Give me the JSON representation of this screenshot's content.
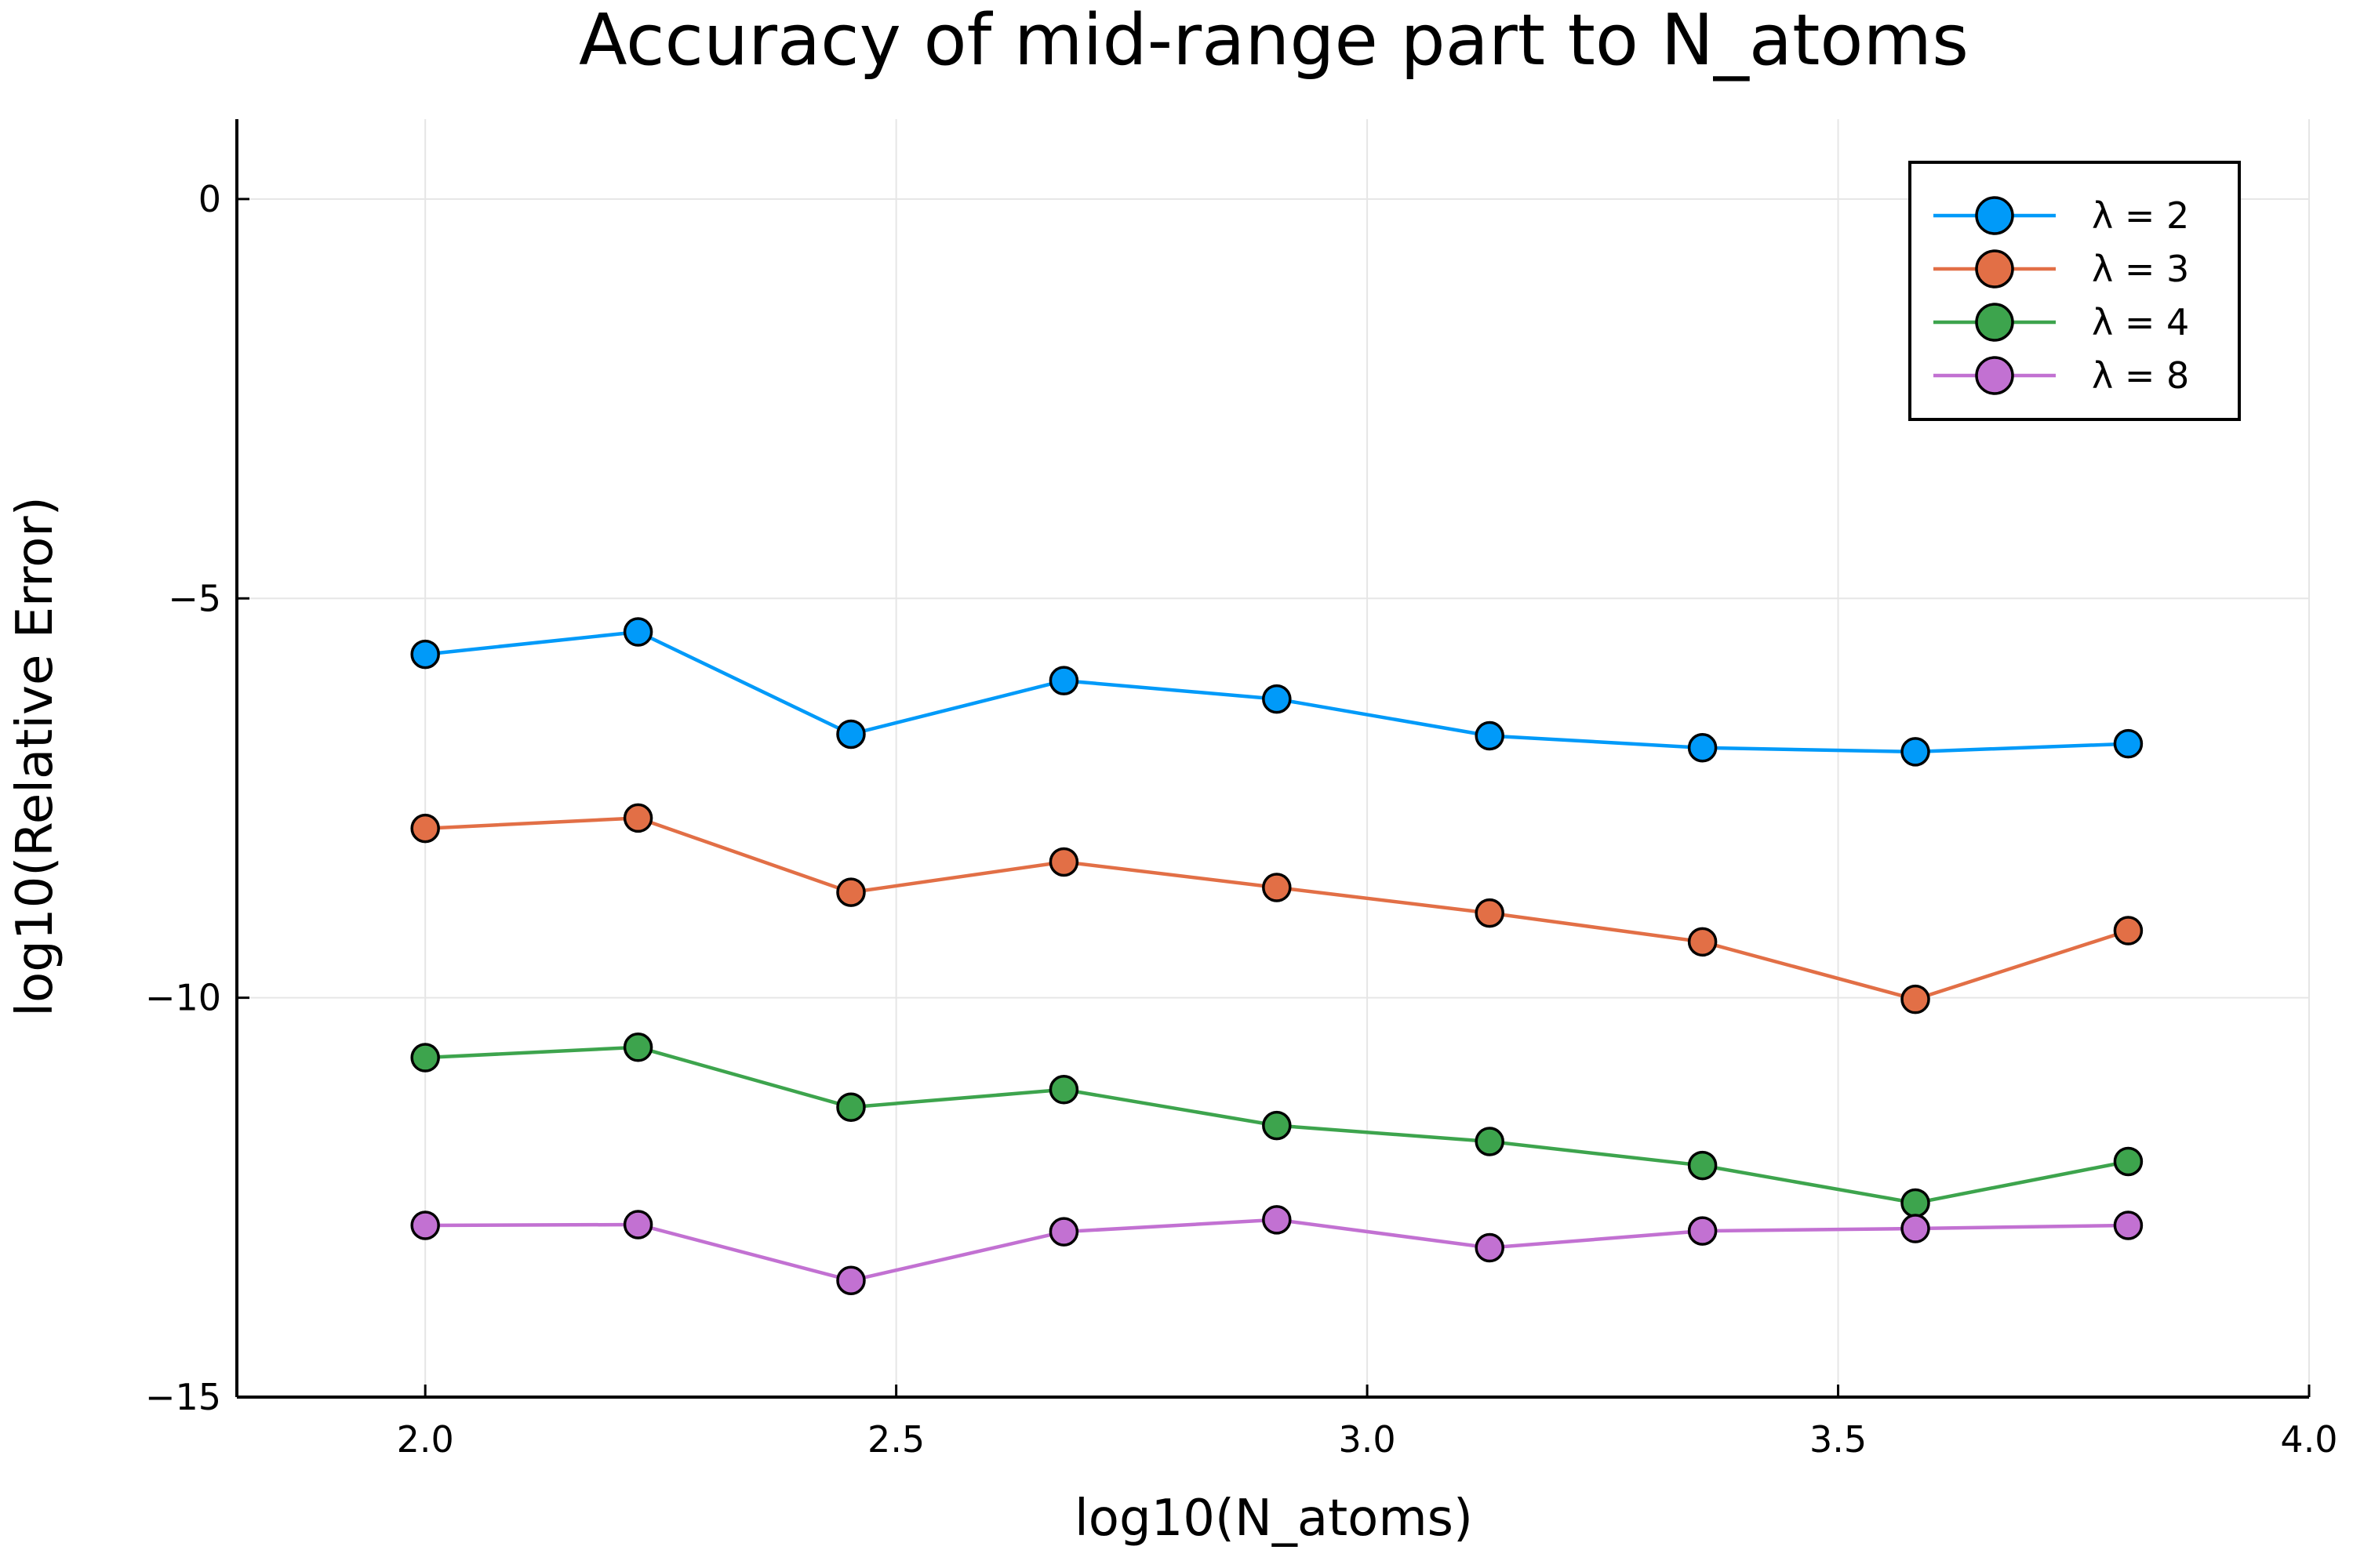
{
  "chart_data": {
    "type": "line",
    "title": "Accuracy of mid-range part to N_atoms",
    "xlabel": "log10(N_atoms)",
    "ylabel": "log10(Relative Error)",
    "xlim": [
      1.8,
      4.0
    ],
    "ylim": [
      -15,
      1
    ],
    "xticks": [
      2.0,
      2.5,
      3.0,
      3.5,
      4.0
    ],
    "xtick_labels": [
      "2.0",
      "2.5",
      "3.0",
      "3.5",
      "4.0"
    ],
    "yticks": [
      0,
      -5,
      -10,
      -15
    ],
    "ytick_labels": [
      "0",
      "−5",
      "−10",
      "−15"
    ],
    "grid": true,
    "legend_position": "top-right",
    "x": [
      2.0,
      2.226,
      2.452,
      2.678,
      2.904,
      3.13,
      3.356,
      3.582,
      3.808
    ],
    "series": [
      {
        "name": "λ = 2",
        "color": "#009af9",
        "values": [
          -5.7,
          -5.42,
          -6.7,
          -6.03,
          -6.26,
          -6.72,
          -6.87,
          -6.92,
          -6.82
        ]
      },
      {
        "name": "λ = 3",
        "color": "#e26f46",
        "values": [
          -7.88,
          -7.75,
          -8.68,
          -8.3,
          -8.62,
          -8.94,
          -9.3,
          -10.02,
          -9.16
        ]
      },
      {
        "name": "λ = 4",
        "color": "#3da44d",
        "values": [
          -10.75,
          -10.62,
          -11.37,
          -11.15,
          -11.6,
          -11.8,
          -12.1,
          -12.57,
          -12.05
        ]
      },
      {
        "name": "λ = 8",
        "color": "#c271d2",
        "values": [
          -12.85,
          -12.84,
          -13.54,
          -12.93,
          -12.78,
          -13.13,
          -12.92,
          -12.89,
          -12.85
        ]
      }
    ]
  }
}
